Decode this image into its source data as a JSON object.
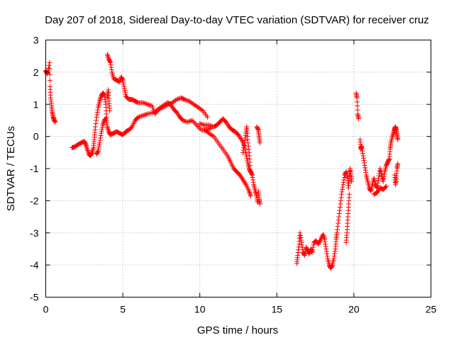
{
  "chart_data": {
    "type": "scatter",
    "title": "Day 207 of 2018, Sidereal Day-to-day VTEC variation (SDTVAR) for receiver cruz",
    "xlabel": "GPS time / hours",
    "ylabel": "SDTVAR / TECUs",
    "xlim": [
      0,
      25
    ],
    "ylim": [
      -5,
      3
    ],
    "xticks": [
      "0",
      "5",
      "10",
      "15",
      "20",
      "25"
    ],
    "yticks": [
      "-5",
      "-4",
      "-3",
      "-2",
      "-1",
      "0",
      "1",
      "2",
      "3"
    ],
    "grid": true,
    "marker": "+",
    "color": "#ff0000",
    "series": [
      {
        "name": "SDTVAR",
        "segments": [
          [
            [
              0.0,
              2.05
            ],
            [
              0.05,
              2.0
            ],
            [
              0.1,
              1.95
            ],
            [
              0.25,
              2.3
            ],
            [
              0.28,
              1.55
            ],
            [
              0.32,
              1.2
            ],
            [
              0.38,
              0.95
            ],
            [
              0.42,
              0.75
            ],
            [
              0.48,
              0.6
            ],
            [
              0.55,
              0.5
            ],
            [
              0.62,
              0.45
            ]
          ],
          [
            [
              1.7,
              -0.35
            ],
            [
              1.9,
              -0.32
            ],
            [
              2.1,
              -0.25
            ],
            [
              2.3,
              -0.2
            ],
            [
              2.5,
              -0.15
            ],
            [
              2.6,
              -0.25
            ],
            [
              2.7,
              -0.4
            ],
            [
              2.8,
              -0.55
            ],
            [
              2.9,
              -0.6
            ],
            [
              3.0,
              -0.5
            ],
            [
              3.1,
              -0.35
            ],
            [
              3.15,
              -0.1
            ],
            [
              3.2,
              0.2
            ],
            [
              3.3,
              0.6
            ],
            [
              3.4,
              0.9
            ],
            [
              3.5,
              1.1
            ],
            [
              3.6,
              1.25
            ],
            [
              3.7,
              1.35
            ],
            [
              3.8,
              1.3
            ],
            [
              3.9,
              1.0
            ],
            [
              3.95,
              0.6
            ]
          ],
          [
            [
              3.3,
              -0.55
            ],
            [
              3.4,
              -0.45
            ],
            [
              3.5,
              -0.2
            ],
            [
              3.6,
              0.1
            ],
            [
              3.7,
              0.35
            ],
            [
              3.8,
              0.5
            ],
            [
              3.9,
              0.55
            ],
            [
              4.0,
              0.3
            ],
            [
              4.1,
              0.15
            ],
            [
              4.2,
              0.05
            ],
            [
              4.4,
              0.1
            ],
            [
              4.6,
              0.15
            ],
            [
              4.8,
              0.1
            ],
            [
              5.0,
              0.05
            ],
            [
              5.2,
              0.15
            ],
            [
              5.4,
              0.2
            ],
            [
              5.6,
              0.3
            ],
            [
              5.8,
              0.5
            ],
            [
              6.0,
              0.6
            ],
            [
              6.3,
              0.65
            ],
            [
              6.6,
              0.7
            ],
            [
              7.0,
              0.75
            ],
            [
              7.4,
              0.85
            ],
            [
              7.8,
              0.95
            ],
            [
              8.2,
              1.05
            ],
            [
              8.5,
              1.15
            ],
            [
              8.8,
              1.2
            ],
            [
              9.0,
              1.15
            ],
            [
              9.3,
              1.1
            ],
            [
              9.6,
              1.0
            ],
            [
              9.9,
              0.9
            ],
            [
              10.2,
              0.8
            ],
            [
              10.5,
              0.6
            ]
          ],
          [
            [
              4.0,
              2.55
            ],
            [
              4.1,
              2.4
            ],
            [
              4.2,
              2.3
            ],
            [
              4.3,
              2.0
            ],
            [
              4.4,
              1.8
            ],
            [
              4.6,
              1.75
            ],
            [
              4.8,
              1.7
            ],
            [
              4.9,
              1.85
            ],
            [
              5.0,
              1.75
            ],
            [
              5.1,
              1.5
            ],
            [
              5.2,
              1.25
            ],
            [
              5.4,
              1.15
            ],
            [
              5.6,
              1.15
            ],
            [
              5.8,
              1.1
            ],
            [
              6.0,
              1.05
            ],
            [
              6.3,
              1.05
            ],
            [
              6.6,
              1.0
            ],
            [
              6.9,
              0.95
            ],
            [
              7.1,
              0.7
            ],
            [
              7.3,
              0.85
            ],
            [
              7.6,
              0.95
            ],
            [
              7.9,
              1.05
            ],
            [
              8.1,
              1.0
            ],
            [
              8.3,
              0.85
            ],
            [
              8.5,
              0.75
            ],
            [
              8.7,
              0.6
            ],
            [
              8.9,
              0.5
            ],
            [
              9.2,
              0.45
            ],
            [
              9.5,
              0.5
            ],
            [
              9.8,
              0.35
            ],
            [
              10.1,
              0.2
            ],
            [
              10.4,
              0.2
            ],
            [
              10.7,
              0.25
            ]
          ],
          [
            [
              4.0,
              1.2
            ],
            [
              4.05,
              1.45
            ],
            [
              4.1,
              1.1
            ],
            [
              4.15,
              0.8
            ]
          ],
          [
            [
              10.0,
              0.4
            ],
            [
              10.3,
              0.35
            ],
            [
              10.6,
              0.35
            ],
            [
              10.9,
              0.3
            ],
            [
              11.1,
              0.35
            ],
            [
              11.3,
              0.45
            ],
            [
              11.5,
              0.55
            ],
            [
              11.7,
              0.45
            ],
            [
              11.9,
              0.3
            ],
            [
              12.1,
              0.2
            ],
            [
              12.3,
              0.15
            ],
            [
              12.5,
              0.05
            ],
            [
              12.7,
              -0.1
            ],
            [
              12.9,
              -0.3
            ],
            [
              13.0,
              -0.55
            ],
            [
              13.1,
              -0.8
            ],
            [
              13.2,
              -1.0
            ],
            [
              13.3,
              -1.1
            ],
            [
              13.4,
              -1.2
            ],
            [
              13.5,
              -1.5
            ],
            [
              13.6,
              -1.7
            ],
            [
              13.7,
              -1.85
            ],
            [
              13.75,
              -2.05
            ]
          ],
          [
            [
              10.3,
              0.2
            ],
            [
              10.6,
              0.1
            ],
            [
              10.9,
              0.0
            ],
            [
              11.2,
              -0.2
            ],
            [
              11.5,
              -0.4
            ],
            [
              11.8,
              -0.6
            ],
            [
              12.0,
              -0.8
            ],
            [
              12.2,
              -1.0
            ],
            [
              12.4,
              -1.1
            ],
            [
              12.6,
              -1.2
            ],
            [
              12.8,
              -1.35
            ],
            [
              13.0,
              -1.5
            ],
            [
              13.2,
              -1.7
            ],
            [
              13.3,
              -1.85
            ]
          ],
          [
            [
              12.8,
              -0.5
            ],
            [
              12.9,
              -0.2
            ],
            [
              13.0,
              0.1
            ],
            [
              13.05,
              0.3
            ],
            [
              13.1,
              -0.1
            ],
            [
              13.2,
              -0.5
            ],
            [
              13.25,
              -0.9
            ]
          ],
          [
            [
              13.7,
              0.3
            ],
            [
              13.8,
              0.2
            ],
            [
              13.85,
              0.0
            ],
            [
              13.9,
              -0.2
            ]
          ],
          [
            [
              13.8,
              -1.7
            ],
            [
              13.85,
              -1.95
            ],
            [
              13.9,
              -2.1
            ]
          ],
          [
            [
              16.3,
              -3.95
            ],
            [
              16.35,
              -3.7
            ],
            [
              16.45,
              -3.35
            ],
            [
              16.5,
              -3.0
            ],
            [
              16.6,
              -3.3
            ],
            [
              16.7,
              -3.6
            ],
            [
              16.8,
              -3.7
            ],
            [
              16.9,
              -3.45
            ],
            [
              17.0,
              -3.55
            ],
            [
              17.1,
              -3.65
            ],
            [
              17.2,
              -3.5
            ],
            [
              17.3,
              -3.6
            ],
            [
              17.4,
              -3.3
            ],
            [
              17.55,
              -3.25
            ],
            [
              17.7,
              -3.35
            ],
            [
              17.85,
              -3.2
            ],
            [
              18.0,
              -3.05
            ],
            [
              18.1,
              -3.2
            ],
            [
              18.2,
              -3.5
            ],
            [
              18.3,
              -3.8
            ],
            [
              18.4,
              -4.0
            ],
            [
              18.5,
              -4.1
            ],
            [
              18.6,
              -4.0
            ],
            [
              18.7,
              -3.8
            ],
            [
              18.8,
              -3.5
            ],
            [
              18.85,
              -3.2
            ],
            [
              18.9,
              -3.0
            ],
            [
              19.0,
              -2.6
            ],
            [
              19.1,
              -2.2
            ],
            [
              19.2,
              -1.8
            ],
            [
              19.3,
              -1.5
            ],
            [
              19.4,
              -1.2
            ],
            [
              19.5,
              -1.1
            ],
            [
              19.6,
              -1.3
            ],
            [
              19.65,
              -1.6
            ],
            [
              19.7,
              -1.3
            ],
            [
              19.75,
              -1.0
            ],
            [
              19.8,
              -1.2
            ],
            [
              19.85,
              -1.4
            ]
          ],
          [
            [
              19.5,
              -3.3
            ],
            [
              19.55,
              -3.0
            ],
            [
              19.6,
              -2.6
            ],
            [
              19.65,
              -2.2
            ],
            [
              19.7,
              -1.8
            ]
          ],
          [
            [
              20.15,
              1.35
            ],
            [
              20.2,
              1.2
            ],
            [
              20.25,
              0.7
            ],
            [
              20.3,
              0.55
            ]
          ],
          [
            [
              20.4,
              -0.1
            ],
            [
              20.45,
              -0.4
            ],
            [
              20.5,
              -0.3
            ],
            [
              20.6,
              -0.6
            ],
            [
              20.7,
              -0.9
            ],
            [
              20.8,
              -1.2
            ],
            [
              20.9,
              -1.4
            ],
            [
              21.0,
              -1.6
            ],
            [
              21.1,
              -1.7
            ],
            [
              21.2,
              -1.5
            ],
            [
              21.3,
              -1.3
            ],
            [
              21.4,
              -1.5
            ],
            [
              21.5,
              -1.6
            ],
            [
              21.6,
              -1.3
            ],
            [
              21.7,
              -1.0
            ],
            [
              21.8,
              -1.2
            ],
            [
              21.9,
              -1.4
            ],
            [
              22.0,
              -1.1
            ],
            [
              22.1,
              -0.9
            ],
            [
              22.2,
              -0.8
            ],
            [
              22.3,
              -0.7
            ],
            [
              22.35,
              -0.4
            ],
            [
              22.4,
              -0.2
            ],
            [
              22.5,
              0.0
            ],
            [
              22.6,
              0.15
            ],
            [
              22.65,
              0.25
            ],
            [
              22.7,
              0.3
            ],
            [
              22.75,
              0.2
            ],
            [
              22.8,
              0.05
            ],
            [
              22.85,
              -0.1
            ]
          ],
          [
            [
              21.3,
              -1.8
            ],
            [
              21.5,
              -1.75
            ],
            [
              21.7,
              -1.6
            ],
            [
              21.9,
              -1.65
            ],
            [
              22.1,
              -1.55
            ]
          ],
          [
            [
              22.65,
              -1.2
            ],
            [
              22.7,
              -1.5
            ],
            [
              22.75,
              -1.3
            ],
            [
              22.8,
              -1.0
            ],
            [
              22.85,
              -0.85
            ]
          ]
        ]
      }
    ]
  }
}
